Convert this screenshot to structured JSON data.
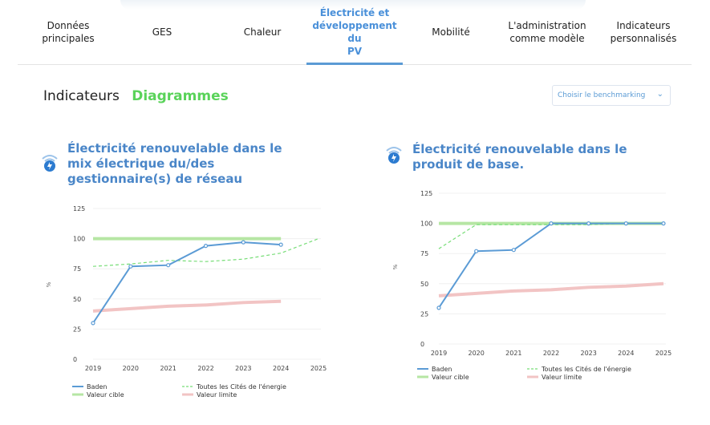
{
  "nav": {
    "tabs": [
      {
        "label": "Données\nprincipales"
      },
      {
        "label": "GES"
      },
      {
        "label": "Chaleur"
      },
      {
        "label": "Électricité et\ndéveloppement du\nPV"
      },
      {
        "label": "Mobilité"
      },
      {
        "label": "L'administration\ncomme modèle"
      },
      {
        "label": "Indicateurs\npersonnalisés"
      }
    ],
    "active_index": 3
  },
  "subtabs": {
    "indicators": "Indicateurs",
    "diagrams": "Diagrammes"
  },
  "benchmark": {
    "placeholder": "Choisir le benchmarking"
  },
  "colors": {
    "baden": "#5b9bd5",
    "toutes": "#77dd77",
    "cible": "#b6e6a4",
    "limite": "#f2c4c4",
    "accent": "#4a86c8"
  },
  "chart_data": [
    {
      "type": "line",
      "title": "Électricité renouvelable dans le mix électrique du/des gestionnaire(s) de réseau",
      "ylabel": "%",
      "x": [
        "2019",
        "2020",
        "2021",
        "2022",
        "2023",
        "2024",
        "2025"
      ],
      "yticks": [
        "0",
        "25",
        "50",
        "75",
        "100",
        "125"
      ],
      "ylim": [
        0,
        125
      ],
      "series": [
        {
          "name": "Baden",
          "values": [
            30,
            77,
            78,
            94,
            97,
            95,
            null
          ]
        },
        {
          "name": "Toutes les Cités de l'énergie",
          "values": [
            77,
            79,
            82,
            81,
            83,
            88,
            100
          ]
        },
        {
          "name": "Valeur cible",
          "values": [
            100,
            100,
            100,
            100,
            100,
            100,
            null
          ]
        },
        {
          "name": "Valeur limite",
          "values": [
            40,
            42,
            44,
            45,
            47,
            48,
            null
          ]
        }
      ]
    },
    {
      "type": "line",
      "title": "Électricité renouvelable dans le produit de base.",
      "ylabel": "%",
      "x": [
        "2019",
        "2020",
        "2021",
        "2022",
        "2023",
        "2024",
        "2025"
      ],
      "yticks": [
        "0",
        "25",
        "50",
        "75",
        "100",
        "125"
      ],
      "ylim": [
        0,
        125
      ],
      "series": [
        {
          "name": "Baden",
          "values": [
            30,
            77,
            78,
            100,
            100,
            100,
            100
          ]
        },
        {
          "name": "Toutes les Cités de l'énergie",
          "values": [
            79,
            99,
            99,
            99,
            99,
            100,
            100
          ]
        },
        {
          "name": "Valeur cible",
          "values": [
            100,
            100,
            100,
            100,
            100,
            100,
            100
          ]
        },
        {
          "name": "Valeur limite",
          "values": [
            40,
            42,
            44,
            45,
            47,
            48,
            50
          ]
        }
      ]
    }
  ]
}
